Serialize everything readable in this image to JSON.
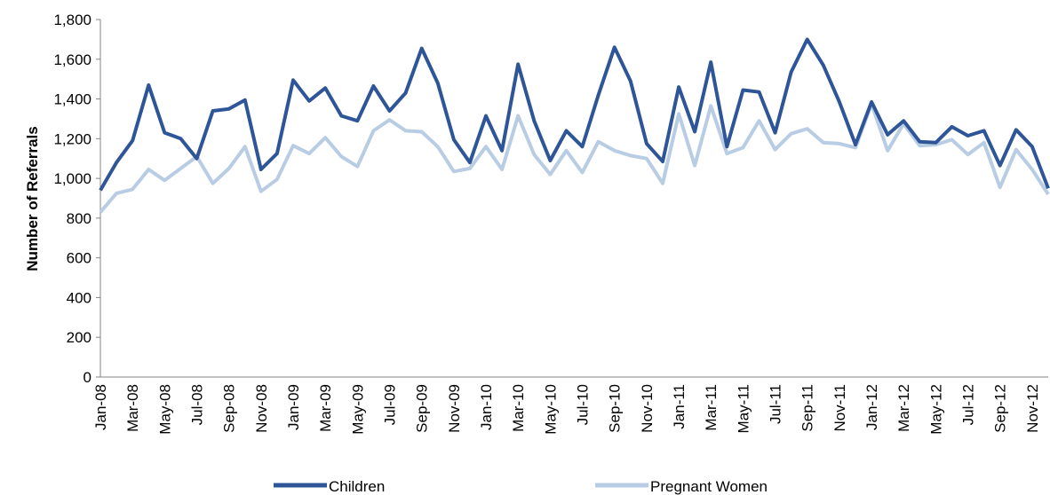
{
  "chart_data": {
    "type": "line",
    "y_label": "Number of Referrals",
    "categories": [
      "Jan-08",
      null,
      "Mar-08",
      null,
      "May-08",
      null,
      "Jul-08",
      null,
      "Sep-08",
      null,
      "Nov-08",
      null,
      "Jan-09",
      null,
      "Mar-09",
      null,
      "May-09",
      null,
      "Jul-09",
      null,
      "Sep-09",
      null,
      "Nov-09",
      null,
      "Jan-10",
      null,
      "Mar-10",
      null,
      "May-10",
      null,
      "Jul-10",
      null,
      "Sep-10",
      null,
      "Nov-10",
      null,
      "Jan-11",
      null,
      "Mar-11",
      null,
      "May-11",
      null,
      "Jul-11",
      null,
      "Sep-11",
      null,
      "Nov-11",
      null,
      "Jan-12",
      null,
      "Mar-12",
      null,
      "May-12",
      null,
      "Jul-12",
      null,
      "Sep-12",
      null,
      "Nov-12",
      null
    ],
    "series": [
      {
        "name": "Children",
        "color": "#2e5597",
        "values": [
          940,
          1080,
          1190,
          1470,
          1230,
          1200,
          1100,
          1340,
          1350,
          1395,
          1045,
          1125,
          1495,
          1390,
          1455,
          1315,
          1290,
          1465,
          1340,
          1430,
          1655,
          1480,
          1195,
          1080,
          1315,
          1140,
          1575,
          1290,
          1090,
          1240,
          1160,
          1420,
          1660,
          1490,
          1175,
          1085,
          1460,
          1235,
          1585,
          1160,
          1445,
          1435,
          1230,
          1535,
          1700,
          1570,
          1385,
          1170,
          1385,
          1220,
          1290,
          1185,
          1180,
          1260,
          1215,
          1240,
          1065,
          1245,
          1160,
          950
        ]
      },
      {
        "name": "Pregnant Women",
        "color": "#b8cce4",
        "values": [
          830,
          925,
          945,
          1045,
          990,
          1050,
          1110,
          975,
          1050,
          1160,
          935,
          995,
          1165,
          1125,
          1205,
          1110,
          1060,
          1240,
          1295,
          1240,
          1235,
          1160,
          1035,
          1050,
          1160,
          1045,
          1315,
          1120,
          1020,
          1140,
          1030,
          1185,
          1140,
          1115,
          1100,
          975,
          1325,
          1065,
          1365,
          1125,
          1155,
          1290,
          1145,
          1225,
          1250,
          1180,
          1175,
          1155,
          1375,
          1140,
          1275,
          1165,
          1170,
          1195,
          1120,
          1180,
          955,
          1145,
          1045,
          920
        ]
      }
    ],
    "ylim": [
      0,
      1800
    ],
    "yticks": [
      0,
      200,
      400,
      600,
      800,
      {
        "value": 1000,
        "label": "1,000"
      },
      {
        "value": 1200,
        "label": "1,200"
      },
      {
        "value": 1400,
        "label": "1,400"
      },
      {
        "value": 1600,
        "label": "1,600"
      },
      {
        "value": 1800,
        "label": "1,800"
      }
    ],
    "grid": false,
    "legend": "bottom"
  }
}
